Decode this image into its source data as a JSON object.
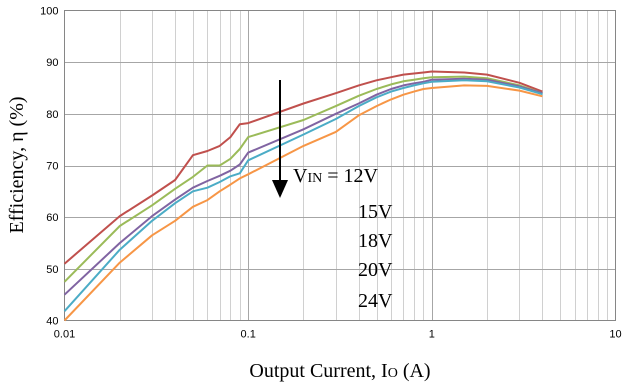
{
  "chart_data": {
    "type": "line",
    "title": "",
    "xlabel": "Output Current, IO (A)",
    "xlabel_main": "Output Current, I",
    "xlabel_sub": "O",
    "xlabel_tail": " (A)",
    "ylabel": "Efficiency, η (%)",
    "x_scale": "log",
    "xlim": [
      0.01,
      10
    ],
    "ylim": [
      40,
      100
    ],
    "x_ticks": [
      0.01,
      0.1,
      1,
      10
    ],
    "x_tick_labels": [
      "0.01",
      "0.1",
      "1",
      "10"
    ],
    "y_ticks": [
      40,
      50,
      60,
      70,
      80,
      90,
      100
    ],
    "y_tick_labels": [
      "40",
      "50",
      "60",
      "70",
      "80",
      "90",
      "100"
    ],
    "grid": true,
    "annotation": {
      "prefix": "V",
      "subscript": "IN",
      "equals": " = ",
      "labels": [
        "12V",
        "15V",
        "18V",
        "20V",
        "24V"
      ],
      "arrow": "down"
    },
    "x": [
      0.01,
      0.02,
      0.03,
      0.04,
      0.05,
      0.06,
      0.07,
      0.08,
      0.09,
      0.1,
      0.2,
      0.3,
      0.4,
      0.5,
      0.6,
      0.7,
      0.8,
      0.9,
      1,
      1.5,
      2,
      3,
      4
    ],
    "series": [
      {
        "name": "12V",
        "color": "#c0504d",
        "values": [
          51,
          60.2,
          64.2,
          67.2,
          72,
          72.8,
          73.8,
          75.5,
          78,
          78.2,
          82,
          84,
          85.5,
          86.5,
          87.1,
          87.6,
          87.8,
          88,
          88.2,
          88,
          87.6,
          86,
          84.3
        ]
      },
      {
        "name": "15V",
        "color": "#9bbb59",
        "values": [
          47.5,
          58.3,
          62.3,
          65.5,
          67.8,
          70,
          70,
          71.3,
          73.2,
          75.5,
          78.8,
          81.5,
          83.5,
          84.8,
          85.7,
          86.3,
          86.6,
          86.9,
          87.1,
          87.2,
          86.9,
          85.5,
          84
        ]
      },
      {
        "name": "18V",
        "color": "#8064a2",
        "values": [
          45,
          55,
          60.2,
          63.4,
          65.7,
          67,
          68,
          69,
          70.2,
          72.5,
          77,
          80,
          82,
          83.7,
          84.8,
          85.5,
          85.9,
          86.2,
          86.6,
          86.8,
          86.6,
          85.3,
          84
        ]
      },
      {
        "name": "20V",
        "color": "#4bacc6",
        "values": [
          41.8,
          53.7,
          59.3,
          62.7,
          65,
          65.7,
          66.8,
          67.9,
          68.5,
          71,
          76,
          79,
          81.5,
          83.2,
          84.3,
          85,
          85.5,
          85.9,
          86.2,
          86.5,
          86.3,
          85.1,
          83.8
        ]
      },
      {
        "name": "24V",
        "color": "#f79646",
        "values": [
          40,
          51.2,
          56.5,
          59.3,
          62,
          63.3,
          65,
          66.3,
          67.5,
          68.3,
          73.8,
          76.5,
          79.7,
          81.5,
          82.8,
          83.7,
          84.3,
          84.8,
          85,
          85.5,
          85.4,
          84.5,
          83.4
        ]
      }
    ]
  }
}
